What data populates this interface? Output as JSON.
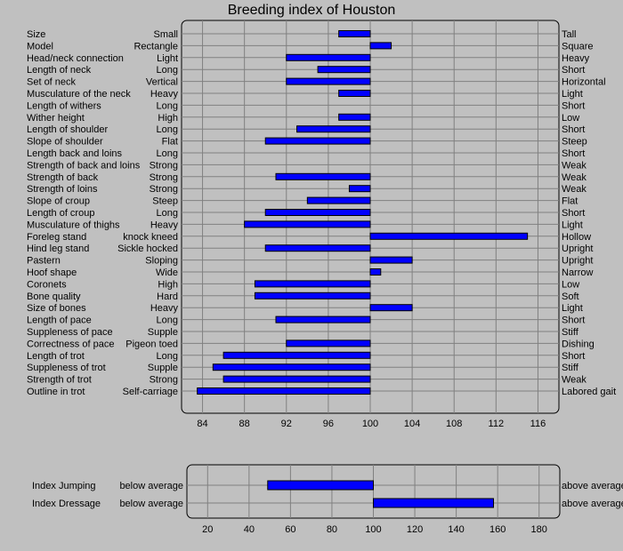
{
  "chart_data": [
    {
      "type": "bar",
      "orientation": "horizontal",
      "title": "Breeding index of Houston",
      "baseline": 100,
      "xlim": [
        82,
        118
      ],
      "xticks": [
        84,
        88,
        92,
        96,
        100,
        104,
        108,
        112,
        116
      ],
      "grid": true,
      "colors": {
        "bar": "#0000ff",
        "bar_outline": "#000000",
        "panel": "#c0c0c0",
        "grid": "#808080"
      },
      "traits": [
        {
          "name": "Size",
          "low": "Small",
          "high": "Tall",
          "value": 97
        },
        {
          "name": "Model",
          "low": "Rectangle",
          "high": "Square",
          "value": 102
        },
        {
          "name": "Head/neck connection",
          "low": "Light",
          "high": "Heavy",
          "value": 92
        },
        {
          "name": "Length of neck",
          "low": "Long",
          "high": "Short",
          "value": 95
        },
        {
          "name": "Set of neck",
          "low": "Vertical",
          "high": "Horizontal",
          "value": 92
        },
        {
          "name": "Musculature of the neck",
          "low": "Heavy",
          "high": "Light",
          "value": 97
        },
        {
          "name": "Length of withers",
          "low": "Long",
          "high": "Short",
          "value": 100
        },
        {
          "name": "Wither height",
          "low": "High",
          "high": "Low",
          "value": 97
        },
        {
          "name": "Length of shoulder",
          "low": "Long",
          "high": "Short",
          "value": 93
        },
        {
          "name": "Slope of shoulder",
          "low": "Flat",
          "high": "Steep",
          "value": 90
        },
        {
          "name": "Length back and loins",
          "low": "Long",
          "high": "Short",
          "value": 100
        },
        {
          "name": "Strength of back and loins",
          "low": "Strong",
          "high": "Weak",
          "value": 100
        },
        {
          "name": "Strength of back",
          "low": "Strong",
          "high": "Weak",
          "value": 91
        },
        {
          "name": "Strength of loins",
          "low": "Strong",
          "high": "Weak",
          "value": 98
        },
        {
          "name": "Slope of croup",
          "low": "Steep",
          "high": "Flat",
          "value": 94
        },
        {
          "name": "Length of croup",
          "low": "Long",
          "high": "Short",
          "value": 90
        },
        {
          "name": "Musculature of thighs",
          "low": "Heavy",
          "high": "Light",
          "value": 88
        },
        {
          "name": "Foreleg stand",
          "low": "knock kneed",
          "high": "Hollow",
          "value": 115
        },
        {
          "name": "Hind leg stand",
          "low": "Sickle hocked",
          "high": "Upright",
          "value": 90
        },
        {
          "name": "Pastern",
          "low": "Sloping",
          "high": "Upright",
          "value": 104
        },
        {
          "name": "Hoof shape",
          "low": "Wide",
          "high": "Narrow",
          "value": 101
        },
        {
          "name": "Coronets",
          "low": "High",
          "high": "Low",
          "value": 89
        },
        {
          "name": "Bone quality",
          "low": "Hard",
          "high": "Soft",
          "value": 89
        },
        {
          "name": "Size of bones",
          "low": "Heavy",
          "high": "Light",
          "value": 104
        },
        {
          "name": "Length of pace",
          "low": "Long",
          "high": "Short",
          "value": 91
        },
        {
          "name": "Suppleness of pace",
          "low": "Supple",
          "high": "Stiff",
          "value": 100
        },
        {
          "name": "Correctness of pace",
          "low": "Pigeon toed",
          "high": "Dishing",
          "value": 92
        },
        {
          "name": "Length of trot",
          "low": "Long",
          "high": "Short",
          "value": 86
        },
        {
          "name": "Suppleness of trot",
          "low": "Supple",
          "high": "Stiff",
          "value": 85
        },
        {
          "name": "Strength of trot",
          "low": "Strong",
          "high": "Weak",
          "value": 86
        },
        {
          "name": "Outline in trot",
          "low": "Self-carriage",
          "high": "Labored gait",
          "value": 83.5
        }
      ]
    },
    {
      "type": "bar",
      "orientation": "horizontal",
      "title": "",
      "baseline": 100,
      "xlim": [
        10,
        190
      ],
      "xticks": [
        20,
        40,
        60,
        80,
        100,
        120,
        140,
        160,
        180
      ],
      "grid": true,
      "indices": [
        {
          "name": "Index Jumping",
          "low": "below average",
          "high": "above average",
          "value": 49
        },
        {
          "name": "Index Dressage",
          "low": "below average",
          "high": "above average",
          "value": 158
        }
      ]
    }
  ]
}
